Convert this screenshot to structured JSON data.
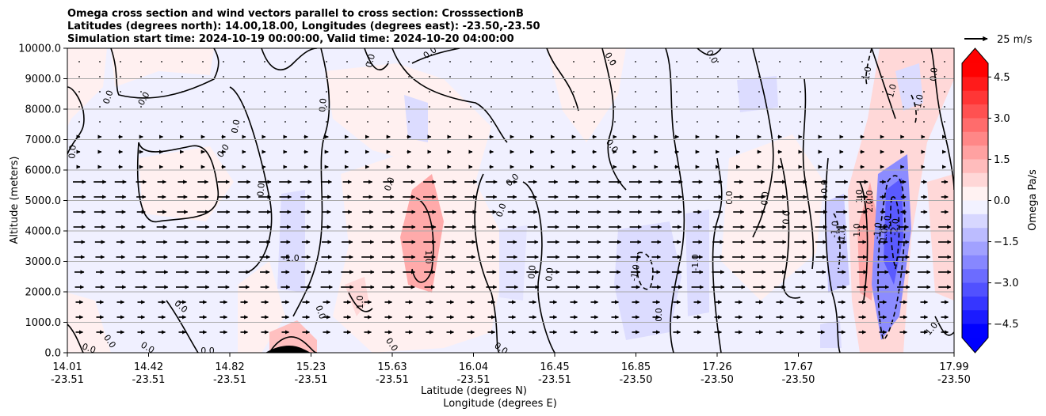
{
  "chart_data": {
    "type": "heatmap",
    "title_lines": [
      "Omega cross section and wind vectors parallel to cross section: CrosssectionB",
      "Latitudes (degrees north): 14.00,18.00, Longitudes (degrees east): -23.50,-23.50",
      "Simulation start time: 2024-10-19 00:00:00, Valid time: 2024-10-20 04:00:00"
    ],
    "ylabel": "Altitude (meters)",
    "xlabel_lat": "Latitude (degrees N)",
    "xlabel_lon": "Longitude (degrees E)",
    "ylim": [
      0,
      10000
    ],
    "yticks": [
      "0.0",
      "1000.0",
      "2000.0",
      "3000.0",
      "4000.0",
      "5000.0",
      "6000.0",
      "7000.0",
      "8000.0",
      "9000.0",
      "10000.0"
    ],
    "xticks_lat": [
      "14.01",
      "14.42",
      "14.82",
      "15.23",
      "15.63",
      "16.04",
      "16.45",
      "16.85",
      "17.26",
      "17.67",
      "17.99"
    ],
    "xticks_lon": [
      "-23.51",
      "-23.51",
      "-23.51",
      "-23.51",
      "-23.51",
      "-23.51",
      "-23.51",
      "-23.50",
      "-23.50",
      "-23.50",
      "-23.50"
    ],
    "grid": "horizontal",
    "colorbar": {
      "label": "Omega Pa/s",
      "ticks": [
        "4.5",
        "3.0",
        "1.5",
        "0.0",
        "−1.5",
        "−3.0",
        "−4.5"
      ],
      "range": [
        -5,
        5
      ],
      "extend": "both",
      "cmap": "bwr",
      "colors": {
        "positive": "#ff0000",
        "negative": "#0000ff",
        "neutral": "#ffffff"
      }
    },
    "quiver_key": {
      "label": "25 m/s"
    },
    "contour_labels": [
      {
        "text": "0.0"
      },
      {
        "text": "0.0"
      },
      {
        "text": "0.0"
      },
      {
        "text": "0.0"
      },
      {
        "text": "0.0"
      },
      {
        "text": "0.0"
      },
      {
        "text": "0.0"
      },
      {
        "text": "0.0"
      },
      {
        "text": "0.0"
      },
      {
        "text": "0.0"
      },
      {
        "text": "0.0"
      },
      {
        "text": "0.0"
      },
      {
        "text": "0.0"
      },
      {
        "text": "0.0"
      },
      {
        "text": "0.0"
      },
      {
        "text": "0.0"
      },
      {
        "text": "0.0"
      },
      {
        "text": "0.0"
      },
      {
        "text": "0.0"
      },
      {
        "text": "0.0"
      },
      {
        "text": "0.0"
      },
      {
        "text": "0.0"
      },
      {
        "text": "0.0"
      },
      {
        "text": "0.0"
      },
      {
        "text": "0.0"
      },
      {
        "text": "0.0"
      },
      {
        "text": "0.0"
      },
      {
        "text": "0.0"
      },
      {
        "text": "0.0"
      },
      {
        "text": "0.0"
      },
      {
        "text": "-1.0"
      },
      {
        "text": "1.0"
      },
      {
        "text": "1.0"
      },
      {
        "text": "1.0"
      },
      {
        "text": "-1.0"
      },
      {
        "text": "-1.0"
      },
      {
        "text": "-1.0"
      },
      {
        "text": "-1.0"
      },
      {
        "text": "1.0"
      },
      {
        "text": "1.0"
      },
      {
        "text": "1.0"
      },
      {
        "text": "-1.0"
      },
      {
        "text": "1.0"
      },
      {
        "text": "-1.0"
      },
      {
        "text": "-1.0"
      },
      {
        "text": "-2.0"
      },
      {
        "text": "-2.0"
      },
      {
        "text": "2.0"
      },
      {
        "text": "2.0"
      },
      {
        "text": "0.0"
      }
    ]
  }
}
